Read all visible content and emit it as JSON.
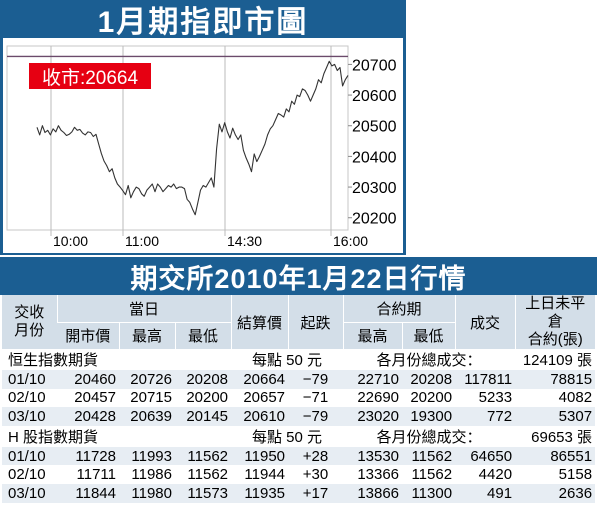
{
  "chart": {
    "title": "1月期指即市圖",
    "close_label": "收市:20664"
  },
  "chart_data": {
    "type": "line",
    "title": "1月期指即市圖",
    "annotation": "收市:20664",
    "x_ticks": [
      "10:00",
      "11:00",
      "14:30",
      "16:00"
    ],
    "y_ticks": [
      20200,
      20300,
      20400,
      20500,
      20600,
      20700
    ],
    "ylim": [
      20160,
      20760
    ],
    "reference_line": 20726,
    "grid": "vertical",
    "series": [
      {
        "values": [
          20495,
          20470,
          20500,
          20478,
          20485,
          20470,
          20490,
          20480,
          20500,
          20485,
          20478,
          20468,
          20472,
          20480,
          20495,
          20485,
          20488,
          20476,
          20470,
          20480,
          20478,
          20465,
          20472,
          20440,
          20410,
          20385,
          20370,
          20350,
          20360,
          20330,
          20310,
          20300,
          20288,
          20275,
          20305,
          20265,
          20285,
          20300,
          20295,
          20278,
          20270,
          20290,
          20300,
          20310,
          20285,
          20310,
          20300,
          20285,
          20295,
          20305,
          20300,
          20310,
          20295,
          20300,
          20300,
          20295,
          20260,
          20250,
          20228,
          20210,
          20250,
          20290,
          20305,
          20300,
          20315,
          20330,
          20300,
          20425,
          20505,
          20480,
          20510,
          20480,
          20460,
          20492,
          20470,
          20455,
          20470,
          20420,
          20395,
          20375,
          20350,
          20408,
          20383,
          20400,
          20420,
          20440,
          20470,
          20490,
          20500,
          20520,
          20540,
          20535,
          20528,
          20555,
          20545,
          20580,
          20570,
          20600,
          20595,
          20620,
          20615,
          20600,
          20580,
          20600,
          20620,
          20650,
          20640,
          20670,
          20690,
          20710,
          20695,
          20700,
          20680,
          20690,
          20630,
          20650,
          20664
        ]
      }
    ]
  },
  "table": {
    "title": "期交所2010年1月22日行情",
    "headers": {
      "contract_month": "交收\n月份",
      "day_group": "當日",
      "open": "開市價",
      "high": "最高",
      "low": "最低",
      "settle": "結算價",
      "change": "起跌",
      "contract_group": "合約期",
      "c_high": "最高",
      "c_low": "最低",
      "volume": "成交",
      "oi": "上日未平倉\n合約(張)"
    },
    "sections": [
      {
        "name": "恒生指數期貨",
        "point_value": "每點 50 元",
        "total_label": "各月份總成交：",
        "total_value": "124109 張",
        "rows": [
          [
            "01/10",
            "20460",
            "20726",
            "20208",
            "20664",
            "−79",
            "22710",
            "20208",
            "117811",
            "78815"
          ],
          [
            "02/10",
            "20457",
            "20715",
            "20200",
            "20657",
            "−71",
            "22690",
            "20200",
            "5233",
            "4082"
          ],
          [
            "03/10",
            "20428",
            "20639",
            "20145",
            "20610",
            "−79",
            "23020",
            "19300",
            "772",
            "5307"
          ]
        ]
      },
      {
        "name": "H 股指數期貨",
        "point_value": "每點 50 元",
        "total_label": "各月份總成交：",
        "total_value": "69653 張",
        "rows": [
          [
            "01/10",
            "11728",
            "11993",
            "11562",
            "11950",
            "+28",
            "13530",
            "11562",
            "64650",
            "86551"
          ],
          [
            "02/10",
            "11711",
            "11986",
            "11562",
            "11944",
            "+30",
            "13366",
            "11562",
            "4420",
            "5158"
          ],
          [
            "03/10",
            "11844",
            "11980",
            "11573",
            "11935",
            "+17",
            "13866",
            "11300",
            "491",
            "2636"
          ]
        ]
      }
    ]
  }
}
